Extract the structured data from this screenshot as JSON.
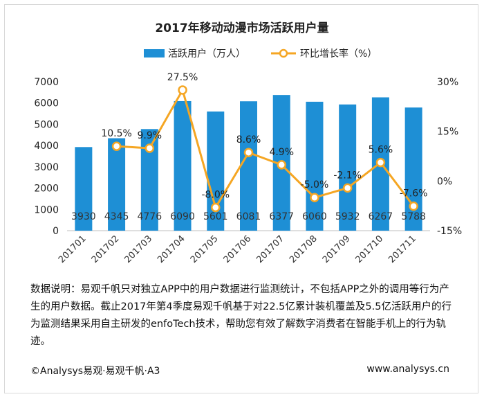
{
  "chart_data": {
    "type": "bar+line",
    "title": "2017年移动动漫市场活跃用户量",
    "categories": [
      "201701",
      "201702",
      "201703",
      "201704",
      "201705",
      "201706",
      "201707",
      "201708",
      "201709",
      "201710",
      "201711"
    ],
    "series": [
      {
        "name": "活跃用户（万人）",
        "type": "bar",
        "axis": "left",
        "values": [
          3930,
          4345,
          4776,
          6090,
          5601,
          6081,
          6377,
          6060,
          5932,
          6267,
          5788
        ],
        "labels": [
          "3930",
          "4345",
          "4776",
          "6090",
          "5601",
          "6081",
          "6377",
          "6060",
          "5932",
          "6267",
          "5788"
        ]
      },
      {
        "name": "环比增长率（%）",
        "type": "line",
        "axis": "right",
        "values": [
          null,
          10.5,
          9.9,
          27.5,
          -8.0,
          8.6,
          4.9,
          -5.0,
          -2.1,
          5.6,
          -7.6
        ],
        "labels": [
          "",
          "10.5%",
          "9.9%",
          "27.5%",
          "-8.0%",
          "8.6%",
          "4.9%",
          "-5.0%",
          "-2.1%",
          "5.6%",
          "-7.6%"
        ]
      }
    ],
    "y_left": {
      "ylim": [
        0,
        7000
      ],
      "ticks": [
        "0",
        "1000",
        "2000",
        "3000",
        "4000",
        "5000",
        "6000",
        "7000"
      ]
    },
    "y_right": {
      "ylim": [
        -15,
        30
      ],
      "ticks": [
        "-15%",
        "0%",
        "15%",
        "30%"
      ]
    },
    "legend": "top-center",
    "grid": false,
    "colors": {
      "bar": "#1e8fd5",
      "line": "#f5a623",
      "marker_fill": "#ffffff"
    }
  },
  "note": "数据说明：易观千帆只对独立APP中的用户数据进行监测统计，不包括APP之外的调用等行为产生的用户数据。截止2017年第4季度易观千帆基于对22.5亿累计装机覆盖及5.5亿活跃用户的行为监测结果采用自主研发的enfoTech技术，帮助您有效了解数字消费者在智能手机上的行为轨迹。",
  "footer": {
    "left": "©Analysys易观·易观千帆·A3",
    "right": "www.analysys.cn"
  }
}
